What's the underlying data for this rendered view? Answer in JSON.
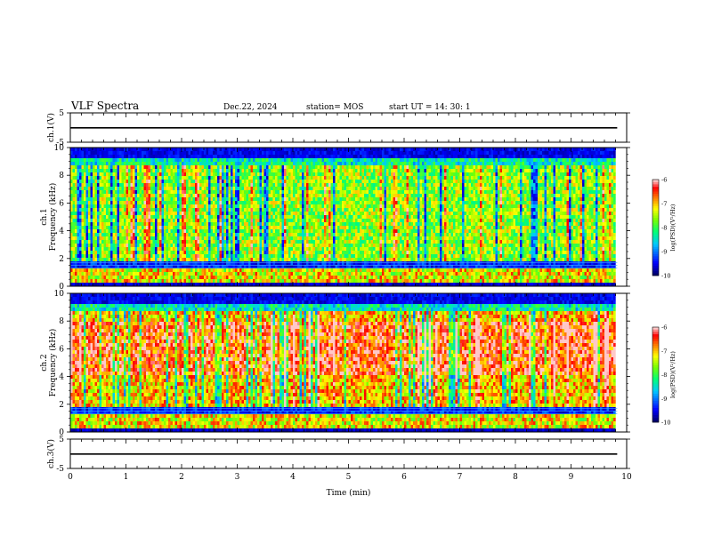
{
  "header": {
    "title": "VLF Spectra",
    "date": "Dec.22, 2024",
    "station": "station= MOS",
    "start": "start  UT =  14: 30: 1"
  },
  "chart_data": [
    {
      "type": "line",
      "panel": "ch1-amplitude",
      "ylabel": "ch.1(V)",
      "ylim": [
        -5,
        5
      ],
      "yticks": [
        5,
        -5
      ],
      "series": [
        {
          "x": [
            0,
            9.83
          ],
          "y": [
            -0.1,
            -0.1
          ]
        }
      ]
    },
    {
      "type": "heatmap",
      "panel": "ch1-spectrogram",
      "ylabel": "ch.1\nFrequency (kHz)",
      "xlim": [
        0,
        10
      ],
      "ylim": [
        0,
        10
      ],
      "yticks": [
        0,
        2,
        4,
        6,
        8,
        10
      ],
      "data_xmax": 9.83,
      "colorbar": {
        "label": "log(PSD)(V²/Hz)",
        "range": [
          -10,
          -6
        ],
        "ticks": [
          -6,
          -7,
          -8,
          -9,
          -10
        ]
      }
    },
    {
      "type": "heatmap",
      "panel": "ch2-spectrogram",
      "ylabel": "ch.2\nFrequency (kHz)",
      "xlim": [
        0,
        10
      ],
      "ylim": [
        0,
        10
      ],
      "yticks": [
        0,
        2,
        4,
        6,
        8,
        10
      ],
      "data_xmax": 9.83,
      "colorbar": {
        "label": "log(PSD)(V²/Hz)",
        "range": [
          -10,
          -6
        ],
        "ticks": [
          -6,
          -7,
          -8,
          -9,
          -10
        ]
      }
    },
    {
      "type": "line",
      "panel": "ch3-amplitude",
      "ylabel": "ch.3(V)",
      "xlabel": "Time  (min)",
      "xlim": [
        0,
        10
      ],
      "xticks": [
        0,
        1,
        2,
        3,
        4,
        5,
        6,
        7,
        8,
        9,
        10
      ],
      "ylim": [
        -5,
        5
      ],
      "yticks": [
        5,
        -5
      ],
      "series": [
        {
          "x": [
            0,
            9.83
          ],
          "y": [
            -0.1,
            -0.1
          ]
        }
      ]
    }
  ]
}
